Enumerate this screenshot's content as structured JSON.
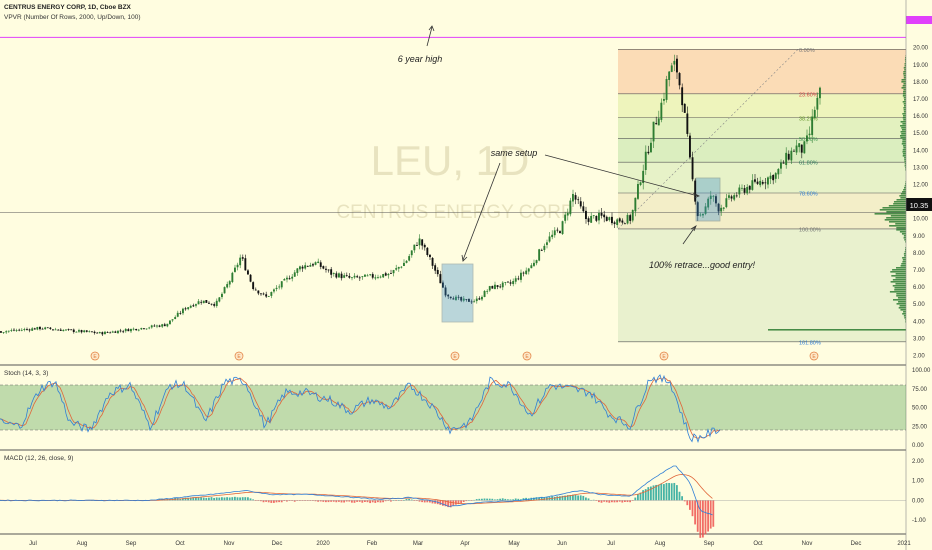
{
  "header": {
    "title": "CENTRUS ENERGY CORP, 1D, Cboe BZX",
    "vpvr_label": "VPVR (Number Of Rows, 2000, Up/Down, 100)"
  },
  "watermark": {
    "symbol": "LEU, 1D",
    "name": "CENTRUS ENERGY CORP"
  },
  "colors": {
    "background": "#fffde0",
    "candle_up": "#2e7d32",
    "candle_down": "#111111",
    "stoch_k": "#2f7fd6",
    "stoch_d": "#e0663a",
    "stoch_band": "#4a9a4a",
    "hist_up": "#26a69a",
    "hist_down": "#ef5350",
    "fib_line": "#555555",
    "resistance": "#e040fb",
    "price_badge": "#111111"
  },
  "chart_data": [
    {
      "type": "candlestick",
      "panel": "price",
      "price_axis": [
        2.0,
        3.0,
        4.0,
        5.0,
        6.0,
        7.0,
        8.0,
        9.0,
        10.0,
        11.0,
        12.0,
        13.0,
        14.0,
        15.0,
        16.0,
        17.0,
        18.0,
        19.0,
        20.0
      ],
      "price_axis_labels": [
        "2.00",
        "3.00",
        "4.00",
        "5.00",
        "6.00",
        "7.00",
        "8.00",
        "9.00",
        "10.00",
        "11.00",
        "12.00",
        "13.00",
        "14.00",
        "15.00",
        "16.00",
        "17.00",
        "18.00",
        "19.00",
        "20.00"
      ],
      "ylim": [
        1.5,
        21.5
      ],
      "x_labels": [
        "Jul",
        "Aug",
        "Sep",
        "Oct",
        "Nov",
        "Dec",
        "2020",
        "Feb",
        "Mar",
        "Apr",
        "May",
        "Jun",
        "Jul",
        "Aug",
        "Sep",
        "Oct",
        "Nov",
        "Dec",
        "2021"
      ],
      "current_price": "10.35",
      "current_value": 10.35,
      "resistance_level": 20.6,
      "price_anchors": [
        [
          0,
          3.4
        ],
        [
          40,
          3.6
        ],
        [
          60,
          3.5
        ],
        [
          100,
          3.3
        ],
        [
          140,
          3.6
        ],
        [
          165,
          3.8
        ],
        [
          185,
          4.8
        ],
        [
          200,
          5.2
        ],
        [
          215,
          5.0
        ],
        [
          230,
          6.5
        ],
        [
          240,
          7.8
        ],
        [
          252,
          6.0
        ],
        [
          265,
          5.4
        ],
        [
          285,
          6.4
        ],
        [
          300,
          7.2
        ],
        [
          315,
          7.4
        ],
        [
          330,
          6.8
        ],
        [
          350,
          6.5
        ],
        [
          370,
          6.6
        ],
        [
          390,
          6.8
        ],
        [
          405,
          7.5
        ],
        [
          418,
          8.8
        ],
        [
          430,
          7.5
        ],
        [
          445,
          5.6
        ],
        [
          460,
          5.2
        ],
        [
          475,
          5.2
        ],
        [
          490,
          6.0
        ],
        [
          510,
          6.2
        ],
        [
          530,
          7.2
        ],
        [
          545,
          8.7
        ],
        [
          560,
          9.4
        ],
        [
          572,
          11.4
        ],
        [
          585,
          10.0
        ],
        [
          600,
          10.1
        ],
        [
          615,
          9.9
        ],
        [
          630,
          10.0
        ],
        [
          640,
          12.5
        ],
        [
          652,
          15.2
        ],
        [
          662,
          17.0
        ],
        [
          668,
          18.6
        ],
        [
          675,
          19.0
        ],
        [
          682,
          16.8
        ],
        [
          690,
          12.8
        ],
        [
          697,
          10.2
        ],
        [
          703,
          10.4
        ],
        [
          710,
          11.4
        ],
        [
          718,
          10.6
        ],
        [
          730,
          11.2
        ],
        [
          745,
          11.8
        ],
        [
          760,
          12.2
        ],
        [
          775,
          12.6
        ],
        [
          785,
          13.5
        ],
        [
          795,
          14.2
        ],
        [
          802,
          14.0
        ],
        [
          808,
          14.8
        ],
        [
          814,
          16.5
        ],
        [
          820,
          17.5
        ]
      ],
      "fib_levels": [
        {
          "label": "0.00%",
          "price": 19.9
        },
        {
          "label": "23.60%",
          "price": 17.3
        },
        {
          "label": "38.20%",
          "price": 15.9
        },
        {
          "label": "50.00%",
          "price": 14.7
        },
        {
          "label": "61.80%",
          "price": 13.3
        },
        {
          "label": "78.60%",
          "price": 11.5
        },
        {
          "label": "100.00%",
          "price": 9.4
        },
        {
          "label": "161.80%",
          "price": 2.8
        }
      ],
      "annotations": [
        {
          "text": "6 year high"
        },
        {
          "text": "same setup"
        },
        {
          "text": "100% retrace...good entry!"
        }
      ],
      "earnings_marker": "E",
      "volume_profile_peak_price": 10.35
    },
    {
      "type": "line",
      "panel": "stochastic",
      "title": "Stoch (14, 3, 3)",
      "axis_labels": [
        "100.00",
        "75.00",
        "50.00",
        "25.00",
        "0.00"
      ],
      "axis_values": [
        100,
        75,
        50,
        25,
        0
      ],
      "band": [
        20,
        80
      ],
      "ylim": [
        0,
        100
      ],
      "series": [
        {
          "name": "%K"
        },
        {
          "name": "%D"
        }
      ],
      "k_anchors": [
        [
          0,
          30
        ],
        [
          20,
          25
        ],
        [
          40,
          75
        ],
        [
          55,
          85
        ],
        [
          70,
          30
        ],
        [
          90,
          20
        ],
        [
          110,
          70
        ],
        [
          130,
          80
        ],
        [
          150,
          25
        ],
        [
          170,
          80
        ],
        [
          185,
          80
        ],
        [
          205,
          30
        ],
        [
          225,
          85
        ],
        [
          245,
          85
        ],
        [
          265,
          25
        ],
        [
          285,
          70
        ],
        [
          305,
          70
        ],
        [
          330,
          60
        ],
        [
          350,
          45
        ],
        [
          370,
          60
        ],
        [
          390,
          50
        ],
        [
          410,
          80
        ],
        [
          430,
          55
        ],
        [
          450,
          20
        ],
        [
          470,
          30
        ],
        [
          490,
          85
        ],
        [
          510,
          80
        ],
        [
          530,
          40
        ],
        [
          550,
          80
        ],
        [
          570,
          75
        ],
        [
          590,
          70
        ],
        [
          610,
          40
        ],
        [
          630,
          25
        ],
        [
          650,
          90
        ],
        [
          670,
          85
        ],
        [
          690,
          10
        ],
        [
          700,
          10
        ],
        [
          720,
          22
        ]
      ]
    },
    {
      "type": "line",
      "panel": "macd",
      "title": "MACD (12, 26, close, 9)",
      "axis_labels": [
        "2.00",
        "1.00",
        "0.00",
        "-1.00"
      ],
      "axis_values": [
        2,
        1,
        0,
        -1
      ],
      "ylim": [
        -1.5,
        2.3
      ],
      "series": [
        {
          "name": "MACD"
        },
        {
          "name": "Signal"
        }
      ],
      "macd_anchors": [
        [
          0,
          0.0
        ],
        [
          150,
          0.0
        ],
        [
          180,
          0.15
        ],
        [
          220,
          0.35
        ],
        [
          245,
          0.5
        ],
        [
          270,
          0.3
        ],
        [
          310,
          0.3
        ],
        [
          340,
          0.2
        ],
        [
          380,
          0.05
        ],
        [
          410,
          0.15
        ],
        [
          430,
          0.0
        ],
        [
          450,
          -0.3
        ],
        [
          480,
          -0.1
        ],
        [
          520,
          0.0
        ],
        [
          550,
          0.2
        ],
        [
          580,
          0.5
        ],
        [
          600,
          0.3
        ],
        [
          630,
          0.2
        ],
        [
          650,
          1.0
        ],
        [
          675,
          1.8
        ],
        [
          690,
          0.9
        ],
        [
          700,
          -0.5
        ],
        [
          715,
          -0.8
        ]
      ]
    }
  ]
}
